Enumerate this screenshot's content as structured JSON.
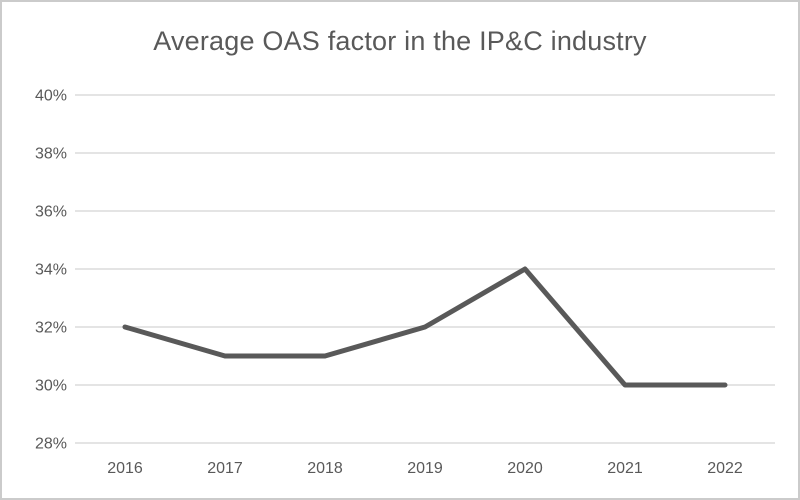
{
  "chart_data": {
    "type": "line",
    "title": "Average OAS factor in the IP&C industry",
    "categories": [
      "2016",
      "2017",
      "2018",
      "2019",
      "2020",
      "2021",
      "2022"
    ],
    "values": [
      32,
      31,
      31,
      32,
      34,
      30,
      30
    ],
    "xlabel": "",
    "ylabel": "",
    "ylim": [
      28,
      40
    ],
    "ytick_step": 2,
    "ytick_suffix": "%",
    "grid": "horizontal-only",
    "legend": "none",
    "colors": {
      "line": "#595959",
      "gridline": "#dcdcdc",
      "axis_text": "#595959",
      "title_text": "#595959",
      "background": "#ffffff",
      "frame_border": "#cbcbcb"
    }
  }
}
